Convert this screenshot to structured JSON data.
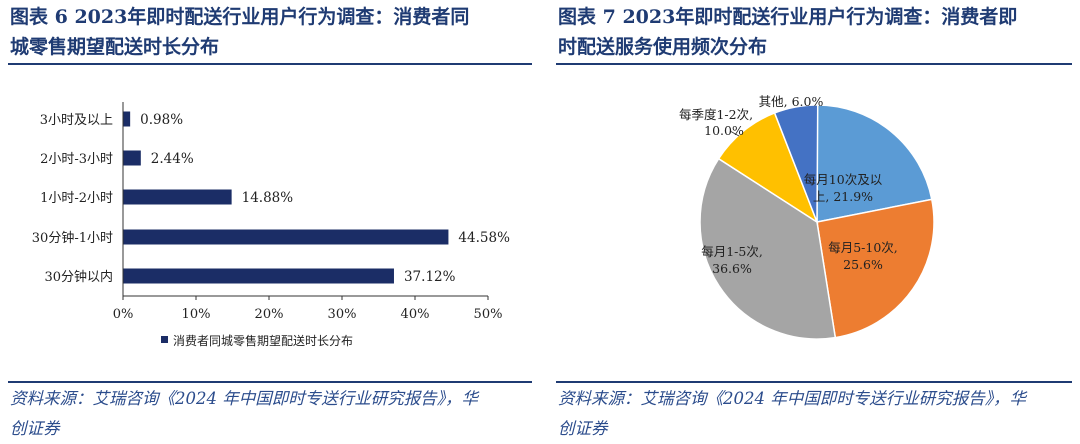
{
  "left": {
    "title_line1": "图表 6   2023年即时配送行业用户行为调查：消费者同",
    "title_line2": "城零售期望配送时长分布",
    "source_line1": "资料来源：艾瑞咨询《2024 年中国即时专送行业研究报告》，华",
    "source_line2": "创证券"
  },
  "right": {
    "title_line1": "图表 7   2023年即时配送行业用户行为调查：消费者即",
    "title_line2": "时配送服务使用频次分布",
    "source_line1": "资料来源：艾瑞咨询《2024 年中国即时专送行业研究报告》，华",
    "source_line2": "创证券"
  },
  "chart_data": [
    {
      "type": "bar",
      "orientation": "horizontal",
      "categories": [
        "3小时及以上",
        "2小时-3小时",
        "1小时-2小时",
        "30分钟-1小时",
        "30分钟以内"
      ],
      "values": [
        0.98,
        2.44,
        14.88,
        44.58,
        37.12
      ],
      "value_labels": [
        "0.98%",
        "2.44%",
        "14.88%",
        "44.58%",
        "37.12%"
      ],
      "xlim": [
        0,
        50
      ],
      "xticks": [
        "0%",
        "10%",
        "20%",
        "30%",
        "40%",
        "50%"
      ],
      "legend": "消费者同城零售期望配送时长分布",
      "legend_position": "bottom",
      "color": "#1b2d66"
    },
    {
      "type": "pie",
      "labels": [
        "每月10次及以上",
        "每月5-10次",
        "每月1-5次",
        "每季度1-2次",
        "其他"
      ],
      "values": [
        21.9,
        25.6,
        36.6,
        10.0,
        6.0
      ],
      "value_labels": [
        "21.9%",
        "25.6%",
        "36.6%",
        "10.0%",
        "6.0%"
      ],
      "colors": [
        "#5b9bd5",
        "#ed7d31",
        "#a5a5a5",
        "#ffc000",
        "#4472c4"
      ]
    }
  ]
}
